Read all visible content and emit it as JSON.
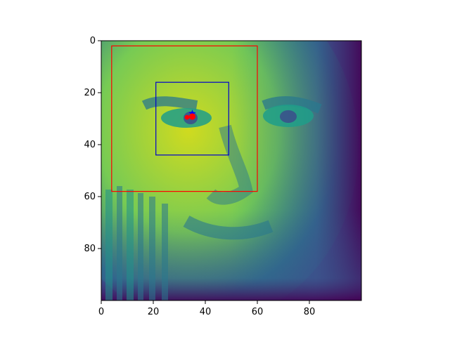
{
  "image": {
    "description_kind": "heatmap-of-face",
    "colormap": "viridis",
    "extent": {
      "x": [
        0,
        100
      ],
      "y": [
        0,
        100
      ]
    }
  },
  "axes": {
    "x_ticks": [
      {
        "value": 0,
        "label": "0"
      },
      {
        "value": 20,
        "label": "20"
      },
      {
        "value": 40,
        "label": "40"
      },
      {
        "value": 60,
        "label": "60"
      },
      {
        "value": 80,
        "label": "80"
      }
    ],
    "y_ticks": [
      {
        "value": 0,
        "label": "0"
      },
      {
        "value": 20,
        "label": "20"
      },
      {
        "value": 40,
        "label": "40"
      },
      {
        "value": 60,
        "label": "60"
      },
      {
        "value": 80,
        "label": "80"
      }
    ]
  },
  "overlays": {
    "red_box": {
      "x0": 4,
      "y0": 2,
      "x1": 60,
      "y1": 58,
      "color": "#ff0000"
    },
    "blue_box": {
      "x0": 21,
      "y0": 16,
      "x1": 49,
      "y1": 44,
      "color": "#0000cc"
    },
    "blue_star": {
      "x": 35,
      "y": 28,
      "color": "#0000ff"
    },
    "red_dots": [
      {
        "x": 33,
        "y": 29.5,
        "color": "#ff0000"
      },
      {
        "x": 35,
        "y": 29.2,
        "color": "#ff0000"
      }
    ]
  }
}
